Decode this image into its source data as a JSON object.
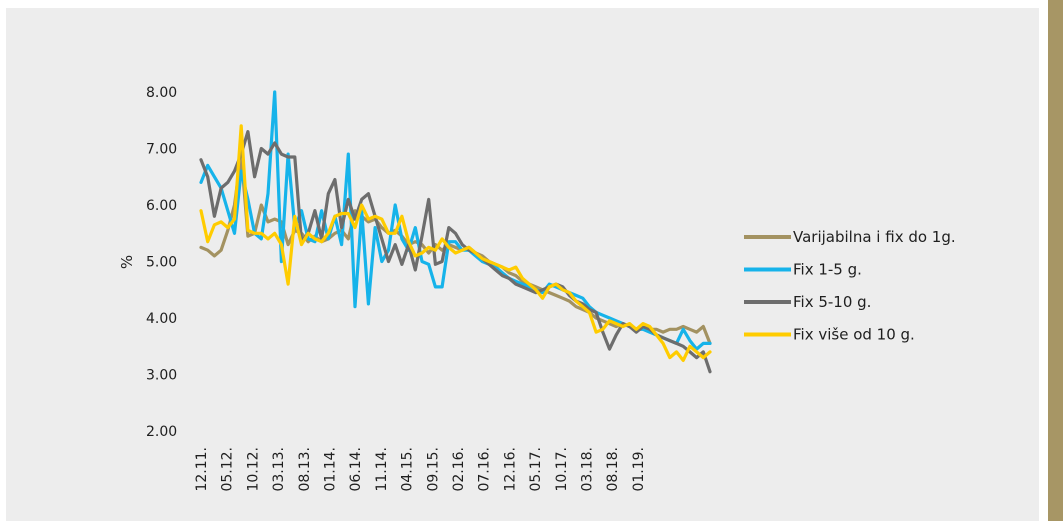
{
  "colors": {
    "background": "#ededed",
    "side_strip": "#a79665"
  },
  "chart_data": {
    "type": "line",
    "title": "",
    "xlabel": "",
    "ylabel": "%",
    "ylim": [
      2.0,
      8.0
    ],
    "yticks": [
      "2.00",
      "3.00",
      "4.00",
      "5.00",
      "6.00",
      "7.00",
      "8.00"
    ],
    "grid": false,
    "legend_position": "right",
    "x_tick_labels": [
      "12.11.",
      "05.12.",
      "10.12.",
      "03.13.",
      "08.13.",
      "01.14.",
      "06.14.",
      "11.14.",
      "04.15.",
      "09.15.",
      "02.16.",
      "07.16.",
      "12.16.",
      "05.17.",
      "10.17.",
      "03.18.",
      "08.18.",
      "01.19."
    ],
    "series": [
      {
        "name": "Varijabilna i fix do 1g.",
        "color": "#a39261",
        "values": [
          5.25,
          5.2,
          5.1,
          5.2,
          5.55,
          6.0,
          6.9,
          5.45,
          5.5,
          6.0,
          5.7,
          5.75,
          5.7,
          5.3,
          5.55,
          5.5,
          5.35,
          5.45,
          5.35,
          5.4,
          5.5,
          5.55,
          5.4,
          5.9,
          5.8,
          5.7,
          5.75,
          5.6,
          5.5,
          5.55,
          5.45,
          5.3,
          5.35,
          5.3,
          5.15,
          5.3,
          5.2,
          5.3,
          5.25,
          5.2,
          5.25,
          5.15,
          5.1,
          5.0,
          4.95,
          4.9,
          4.8,
          4.75,
          4.65,
          4.6,
          4.55,
          4.5,
          4.45,
          4.4,
          4.35,
          4.3,
          4.2,
          4.15,
          4.1,
          4.0,
          3.95,
          3.9,
          3.85,
          3.9,
          3.85,
          3.8,
          3.85,
          3.8,
          3.8,
          3.75,
          3.8,
          3.8,
          3.85,
          3.8,
          3.75,
          3.85,
          3.55
        ]
      },
      {
        "name": "Fix 1-5 g.",
        "color": "#16b3ea",
        "values": [
          6.4,
          6.7,
          6.5,
          6.3,
          5.9,
          5.5,
          6.6,
          6.1,
          5.5,
          5.4,
          6.2,
          8.0,
          5.0,
          6.9,
          5.6,
          5.9,
          5.4,
          5.35,
          5.9,
          5.4,
          5.8,
          5.3,
          6.9,
          4.2,
          5.9,
          4.25,
          5.6,
          5.0,
          5.2,
          6.0,
          5.4,
          5.2,
          5.6,
          5.0,
          4.95,
          4.55,
          4.55,
          5.35,
          5.35,
          5.2,
          5.2,
          5.1,
          5.0,
          4.95,
          4.9,
          4.8,
          4.7,
          4.65,
          4.6,
          4.55,
          4.5,
          4.45,
          4.6,
          4.55,
          4.5,
          4.45,
          4.4,
          4.35,
          4.2,
          4.1,
          4.05,
          4.0,
          3.95,
          3.9,
          3.85,
          3.8,
          3.8,
          3.75,
          3.7,
          3.65,
          3.6,
          3.55,
          3.8,
          3.6,
          3.45,
          3.55,
          3.55
        ]
      },
      {
        "name": "Fix 5-10 g.",
        "color": "#6d6d6d",
        "values": [
          6.8,
          6.5,
          5.8,
          6.3,
          6.4,
          6.6,
          6.9,
          7.3,
          6.5,
          7.0,
          6.9,
          7.1,
          6.9,
          6.85,
          6.85,
          5.35,
          5.5,
          5.9,
          5.4,
          6.2,
          6.45,
          5.6,
          6.1,
          5.75,
          6.1,
          6.2,
          5.8,
          5.4,
          5.0,
          5.3,
          4.95,
          5.3,
          4.85,
          5.45,
          6.1,
          4.95,
          5.0,
          5.6,
          5.5,
          5.3,
          5.2,
          5.15,
          5.05,
          4.95,
          4.85,
          4.75,
          4.7,
          4.6,
          4.55,
          4.5,
          4.45,
          4.5,
          4.55,
          4.6,
          4.55,
          4.4,
          4.3,
          4.25,
          4.15,
          4.1,
          3.75,
          3.45,
          3.7,
          3.9,
          3.85,
          3.75,
          3.85,
          3.8,
          3.7,
          3.65,
          3.6,
          3.55,
          3.5,
          3.4,
          3.3,
          3.4,
          3.05
        ]
      },
      {
        "name": "Fix više od 10 g.",
        "color": "#ffcc00",
        "values": [
          5.9,
          5.35,
          5.65,
          5.7,
          5.6,
          5.75,
          7.4,
          5.55,
          5.5,
          5.5,
          5.4,
          5.5,
          5.3,
          4.6,
          5.8,
          5.3,
          5.5,
          5.4,
          5.35,
          5.5,
          5.8,
          5.85,
          5.85,
          5.6,
          6.0,
          5.75,
          5.8,
          5.75,
          5.5,
          5.5,
          5.8,
          5.35,
          5.1,
          5.15,
          5.25,
          5.2,
          5.4,
          5.25,
          5.15,
          5.2,
          5.25,
          5.15,
          5.05,
          5.0,
          4.95,
          4.9,
          4.85,
          4.9,
          4.7,
          4.6,
          4.5,
          4.35,
          4.55,
          4.6,
          4.5,
          4.45,
          4.3,
          4.2,
          4.1,
          3.75,
          3.8,
          3.95,
          3.9,
          3.85,
          3.9,
          3.8,
          3.9,
          3.85,
          3.7,
          3.55,
          3.3,
          3.4,
          3.25,
          3.5,
          3.4,
          3.3,
          3.4
        ]
      }
    ]
  }
}
